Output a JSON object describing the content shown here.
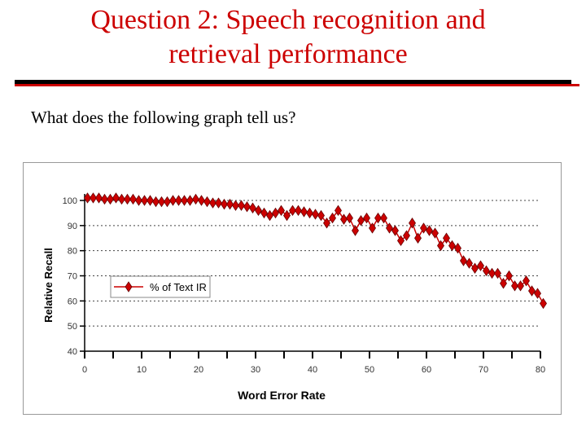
{
  "slide": {
    "title_line1": "Question 2: Speech recognition and",
    "title_line2": "retrieval performance",
    "question": "What does the following graph tell us?"
  },
  "colors": {
    "title": "#cc0000",
    "marker": "#cc0000",
    "marker_outline": "#660000"
  },
  "chart_data": {
    "type": "line",
    "xlabel": "Word Error Rate",
    "ylabel": "Relative Recall",
    "xlim": [
      0,
      80
    ],
    "ylim": [
      40,
      100
    ],
    "x_ticks": [
      0,
      10,
      20,
      30,
      40,
      50,
      60,
      70,
      80
    ],
    "y_ticks": [
      40,
      50,
      60,
      70,
      80,
      90,
      100
    ],
    "grid": "horizontal dotted",
    "legend_position": "left-middle",
    "series": [
      {
        "name": "% of Text IR",
        "points": [
          [
            0.5,
            101
          ],
          [
            1.5,
            101
          ],
          [
            2.5,
            101
          ],
          [
            3.5,
            100.5
          ],
          [
            4.5,
            100.5
          ],
          [
            5.5,
            101
          ],
          [
            6.5,
            100.5
          ],
          [
            7.5,
            100.5
          ],
          [
            8.5,
            100.5
          ],
          [
            9.5,
            100
          ],
          [
            10.5,
            100
          ],
          [
            11.5,
            100
          ],
          [
            12.5,
            99.5
          ],
          [
            13.5,
            99.5
          ],
          [
            14.5,
            99.5
          ],
          [
            15.5,
            100
          ],
          [
            16.5,
            100
          ],
          [
            17.5,
            100
          ],
          [
            18.5,
            100
          ],
          [
            19.5,
            100.5
          ],
          [
            20.5,
            100
          ],
          [
            21.5,
            99.5
          ],
          [
            22.5,
            99
          ],
          [
            23.5,
            99
          ],
          [
            24.5,
            98.5
          ],
          [
            25.5,
            98.5
          ],
          [
            26.5,
            98
          ],
          [
            27.5,
            98
          ],
          [
            28.5,
            97.5
          ],
          [
            29.5,
            97
          ],
          [
            30.5,
            96
          ],
          [
            31.5,
            95
          ],
          [
            32.5,
            94
          ],
          [
            33.5,
            95
          ],
          [
            34.5,
            96
          ],
          [
            35.5,
            94
          ],
          [
            36.5,
            96
          ],
          [
            37.5,
            96
          ],
          [
            38.5,
            95.5
          ],
          [
            39.5,
            95
          ],
          [
            40.5,
            94.5
          ],
          [
            41.5,
            94
          ],
          [
            42.5,
            91
          ],
          [
            43.5,
            93
          ],
          [
            44.5,
            96
          ],
          [
            45.5,
            92.5
          ],
          [
            46.5,
            93
          ],
          [
            47.5,
            88
          ],
          [
            48.5,
            92
          ],
          [
            49.5,
            93
          ],
          [
            50.5,
            89
          ],
          [
            51.5,
            93
          ],
          [
            52.5,
            93
          ],
          [
            53.5,
            89
          ],
          [
            54.5,
            88
          ],
          [
            55.5,
            84
          ],
          [
            56.5,
            86
          ],
          [
            57.5,
            91
          ],
          [
            58.5,
            85
          ],
          [
            59.5,
            89
          ],
          [
            60.5,
            88
          ],
          [
            61.5,
            87
          ],
          [
            62.5,
            82
          ],
          [
            63.5,
            85
          ],
          [
            64.5,
            82
          ],
          [
            65.5,
            81
          ],
          [
            66.5,
            76
          ],
          [
            67.5,
            75
          ],
          [
            68.5,
            73
          ],
          [
            69.5,
            74
          ],
          [
            70.5,
            72
          ],
          [
            71.5,
            71
          ],
          [
            72.5,
            71
          ],
          [
            73.5,
            67
          ],
          [
            74.5,
            70
          ],
          [
            75.5,
            66
          ],
          [
            76.5,
            66
          ],
          [
            77.5,
            68
          ],
          [
            78.5,
            64
          ],
          [
            79.5,
            63
          ],
          [
            80.5,
            59
          ]
        ]
      }
    ]
  }
}
